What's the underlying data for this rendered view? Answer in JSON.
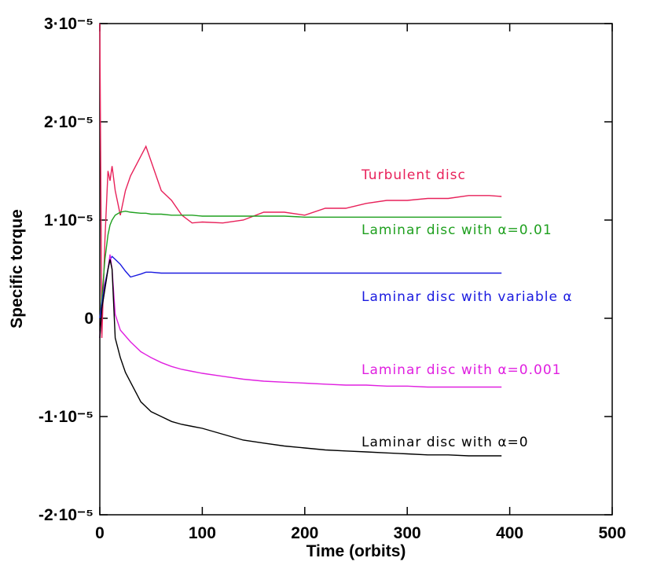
{
  "chart_data": {
    "type": "line",
    "xlabel": "Time (orbits)",
    "ylabel": "Specific torque",
    "xlim": [
      0,
      500
    ],
    "xticks": [
      0,
      100,
      200,
      300,
      400,
      500
    ],
    "ylim": [
      -2e-05,
      3e-05
    ],
    "yticks": [
      {
        "value": -2e-05,
        "label": "-2·10⁻⁵"
      },
      {
        "value": -1e-05,
        "label": "-1·10⁻⁵"
      },
      0,
      {
        "value": 1e-05,
        "label": "1·10⁻⁵"
      },
      {
        "value": 2e-05,
        "label": "2·10⁻⁵"
      },
      {
        "value": 3e-05,
        "label": "3·10⁻⁵"
      }
    ],
    "x": [
      0,
      2,
      5,
      8,
      10,
      12,
      15,
      20,
      25,
      30,
      40,
      45,
      50,
      60,
      70,
      80,
      90,
      100,
      120,
      140,
      160,
      180,
      200,
      220,
      240,
      260,
      280,
      300,
      320,
      340,
      360,
      380,
      392
    ],
    "series": [
      {
        "name": "Turbulent disc",
        "color": "#e8215a",
        "values": [
          3e-05,
          -2e-06,
          8e-06,
          1.5e-05,
          1.4e-05,
          1.55e-05,
          1.3e-05,
          1.05e-05,
          1.3e-05,
          1.45e-05,
          1.65e-05,
          1.75e-05,
          1.6e-05,
          1.3e-05,
          1.2e-05,
          1.05e-05,
          9.7e-06,
          9.8e-06,
          9.7e-06,
          1e-05,
          1.08e-05,
          1.08e-05,
          1.05e-05,
          1.12e-05,
          1.12e-05,
          1.17e-05,
          1.2e-05,
          1.2e-05,
          1.22e-05,
          1.22e-05,
          1.25e-05,
          1.25e-05,
          1.24e-05
        ]
      },
      {
        "name": "Laminar disc with α=0.01",
        "color": "#1fa01f",
        "values": [
          0,
          2e-06,
          6e-06,
          8.5e-06,
          9.5e-06,
          1e-05,
          1.05e-05,
          1.08e-05,
          1.09e-05,
          1.08e-05,
          1.07e-05,
          1.07e-05,
          1.06e-05,
          1.06e-05,
          1.05e-05,
          1.05e-05,
          1.05e-05,
          1.04e-05,
          1.04e-05,
          1.04e-05,
          1.04e-05,
          1.04e-05,
          1.03e-05,
          1.03e-05,
          1.03e-05,
          1.03e-05,
          1.03e-05,
          1.03e-05,
          1.03e-05,
          1.03e-05,
          1.03e-05,
          1.03e-05,
          1.03e-05
        ]
      },
      {
        "name": "Laminar disc with variable α",
        "color": "#1a1ae0",
        "values": [
          0,
          1.5e-06,
          3.5e-06,
          5e-06,
          6e-06,
          6.3e-06,
          6e-06,
          5.5e-06,
          4.8e-06,
          4.2e-06,
          4.5e-06,
          4.7e-06,
          4.7e-06,
          4.6e-06,
          4.6e-06,
          4.6e-06,
          4.6e-06,
          4.6e-06,
          4.6e-06,
          4.6e-06,
          4.6e-06,
          4.6e-06,
          4.6e-06,
          4.6e-06,
          4.6e-06,
          4.6e-06,
          4.6e-06,
          4.6e-06,
          4.6e-06,
          4.6e-06,
          4.6e-06,
          4.6e-06,
          4.6e-06
        ]
      },
      {
        "name": "Laminar disc with α=0.001",
        "color": "#e020e0",
        "values": [
          -2e-06,
          1e-06,
          3e-06,
          5e-06,
          6.5e-06,
          5e-06,
          4e-07,
          -1.2e-06,
          -1.8e-06,
          -2.4e-06,
          -3.4e-06,
          -3.7e-06,
          -4e-06,
          -4.5e-06,
          -4.9e-06,
          -5.2e-06,
          -5.4e-06,
          -5.6e-06,
          -5.9e-06,
          -6.2e-06,
          -6.4e-06,
          -6.5e-06,
          -6.6e-06,
          -6.7e-06,
          -6.8e-06,
          -6.8e-06,
          -6.9e-06,
          -6.9e-06,
          -7e-06,
          -7e-06,
          -7e-06,
          -7e-06,
          -7e-06
        ]
      },
      {
        "name": "Laminar disc with α=0",
        "color": "#000000",
        "values": [
          -2e-06,
          1e-06,
          3e-06,
          5e-06,
          6e-06,
          5e-06,
          -2e-06,
          -4e-06,
          -5.5e-06,
          -6.5e-06,
          -8.5e-06,
          -9e-06,
          -9.5e-06,
          -1e-05,
          -1.05e-05,
          -1.08e-05,
          -1.1e-05,
          -1.12e-05,
          -1.18e-05,
          -1.24e-05,
          -1.27e-05,
          -1.3e-05,
          -1.32e-05,
          -1.34e-05,
          -1.35e-05,
          -1.36e-05,
          -1.37e-05,
          -1.38e-05,
          -1.39e-05,
          -1.39e-05,
          -1.4e-05,
          -1.4e-05,
          -1.4e-05
        ]
      }
    ]
  }
}
